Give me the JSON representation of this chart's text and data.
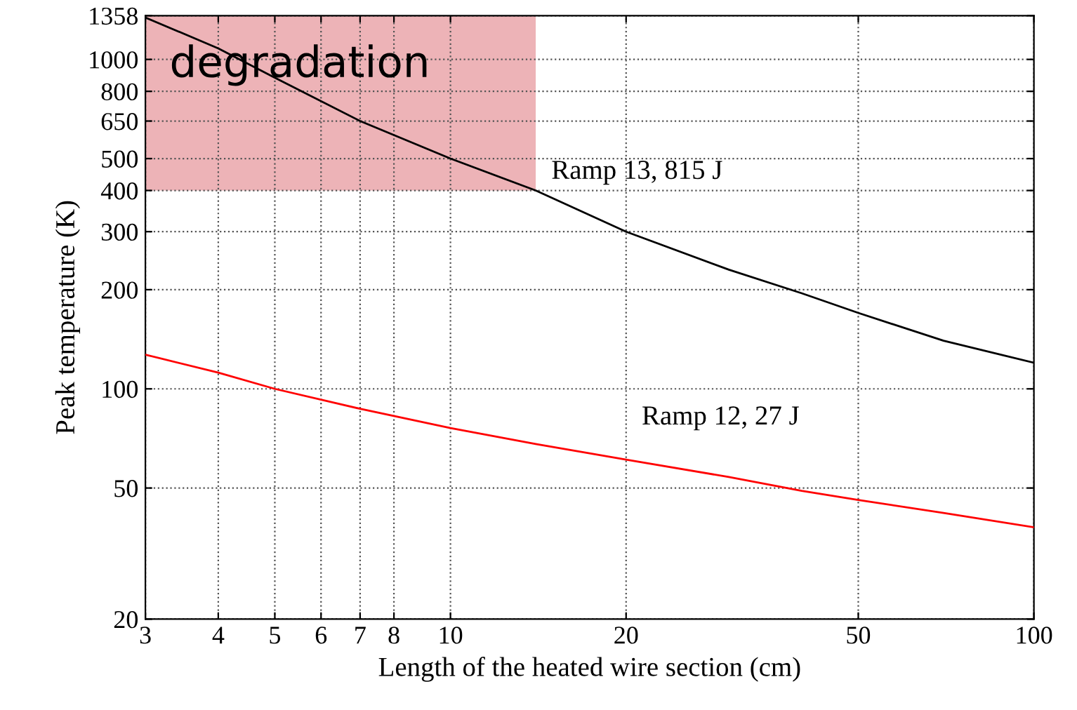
{
  "chart_data": {
    "type": "line",
    "xlabel": "Length of the heated wire section (cm)",
    "ylabel": "Peak temperature (K)",
    "log": "xy",
    "grid": true,
    "legend": false,
    "marker": "none",
    "line_style": "solid",
    "xlim": [
      3,
      100
    ],
    "xticks": [
      3,
      4,
      5,
      6,
      7,
      8,
      10,
      20,
      50,
      100
    ],
    "ylim": [
      20,
      1358
    ],
    "yticks": [
      20,
      50,
      100,
      200,
      300,
      400,
      500,
      650,
      800,
      1000,
      1358
    ],
    "bands": [
      {
        "axis": "y",
        "from": 400,
        "to": 1358,
        "label": "degradation",
        "color": "#e8a0a5"
      }
    ],
    "x": [
      3,
      4,
      5,
      7,
      10,
      14,
      20,
      30,
      40,
      50,
      70,
      100
    ],
    "series": [
      {
        "name": "Ramp 13, 815 J",
        "color": "#000000",
        "values": [
          1340,
          1080,
          880,
          650,
          500,
          400,
          300,
          230,
          195,
          170,
          140,
          120
        ]
      },
      {
        "name": "Ramp 12, 27 J",
        "color": "#ff0000",
        "values": [
          127,
          112,
          100,
          87,
          76,
          68,
          61,
          54,
          49,
          46,
          42,
          38
        ]
      }
    ]
  }
}
